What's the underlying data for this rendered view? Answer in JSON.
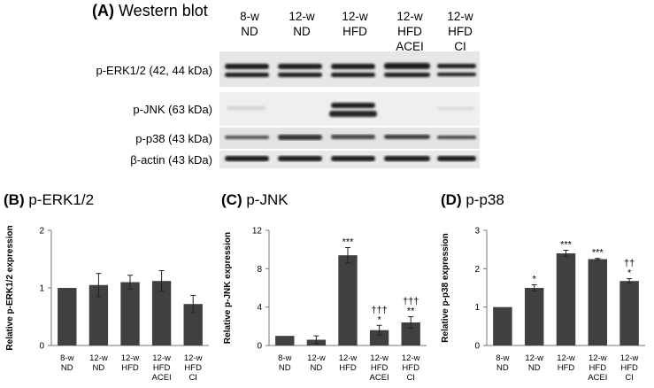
{
  "western_blot": {
    "title_letter": "(A)",
    "title_text": "Western blot",
    "lanes": [
      [
        "8-w",
        "ND"
      ],
      [
        "12-w",
        "ND"
      ],
      [
        "12-w",
        "HFD"
      ],
      [
        "12-w",
        "HFD",
        "ACEI"
      ],
      [
        "12-w",
        "HFD",
        "CI"
      ]
    ],
    "blots": [
      {
        "label": "p-ERK1/2 (42, 44 kDa)"
      },
      {
        "label": "p-JNK (63 kDa)"
      },
      {
        "label": "p-p38 (43 kDa)"
      },
      {
        "label": "β-actin (43 kDa)"
      }
    ]
  },
  "chart_data": [
    {
      "type": "bar",
      "title_letter": "(B)",
      "title": "p-ERK1/2",
      "ylabel": "Relative p-ERK1/2 expression",
      "ylim": [
        0,
        2
      ],
      "yticks": [
        "0",
        "1",
        "2"
      ],
      "yticks_val": [
        0,
        1,
        2
      ],
      "categories": [
        [
          "8-w",
          "ND"
        ],
        [
          "12-w",
          "ND"
        ],
        [
          "12-w",
          "HFD"
        ],
        [
          "12-w",
          "HFD",
          "ACEI"
        ],
        [
          "12-w",
          "HFD",
          "CI"
        ]
      ],
      "values": [
        1.0,
        1.05,
        1.1,
        1.12,
        0.72
      ],
      "errors": [
        0.0,
        0.2,
        0.12,
        0.18,
        0.15
      ],
      "annotations": [
        "",
        "",
        "",
        "",
        ""
      ],
      "grid": false,
      "bar_color": "#404040"
    },
    {
      "type": "bar",
      "title_letter": "(C)",
      "title": "p-JNK",
      "ylabel": "Relative p-JNK expression",
      "ylim": [
        0,
        12
      ],
      "yticks": [
        "0",
        "4",
        "8",
        "12"
      ],
      "yticks_val": [
        0,
        4,
        8,
        12
      ],
      "categories": [
        [
          "8-w",
          "ND"
        ],
        [
          "12-w",
          "ND"
        ],
        [
          "12-w",
          "HFD"
        ],
        [
          "12-w",
          "HFD",
          "ACEI"
        ],
        [
          "12-w",
          "HFD",
          "CI"
        ]
      ],
      "values": [
        1.0,
        0.6,
        9.4,
        1.6,
        2.4
      ],
      "errors": [
        0.0,
        0.4,
        0.8,
        0.5,
        0.6
      ],
      "annotations": [
        "",
        "",
        "***",
        "†††\n*",
        "†††\n**"
      ],
      "grid": false,
      "bar_color": "#404040"
    },
    {
      "type": "bar",
      "title_letter": "(D)",
      "title": "p-p38",
      "ylabel": "Relative p-p38 expression",
      "ylim": [
        0,
        3
      ],
      "yticks": [
        "0",
        "1",
        "2",
        "3"
      ],
      "yticks_val": [
        0,
        1,
        2,
        3
      ],
      "categories": [
        [
          "8-w",
          "ND"
        ],
        [
          "12-w",
          "ND"
        ],
        [
          "12-w",
          "HFD"
        ],
        [
          "12-w",
          "HFD",
          "ACEI"
        ],
        [
          "12-w",
          "HFD",
          "CI"
        ]
      ],
      "values": [
        1.0,
        1.5,
        2.4,
        2.25,
        1.68
      ],
      "errors": [
        0.0,
        0.08,
        0.08,
        0.02,
        0.06
      ],
      "annotations": [
        "",
        "*",
        "***",
        "***",
        "††\n*"
      ],
      "grid": false,
      "bar_color": "#404040"
    }
  ]
}
